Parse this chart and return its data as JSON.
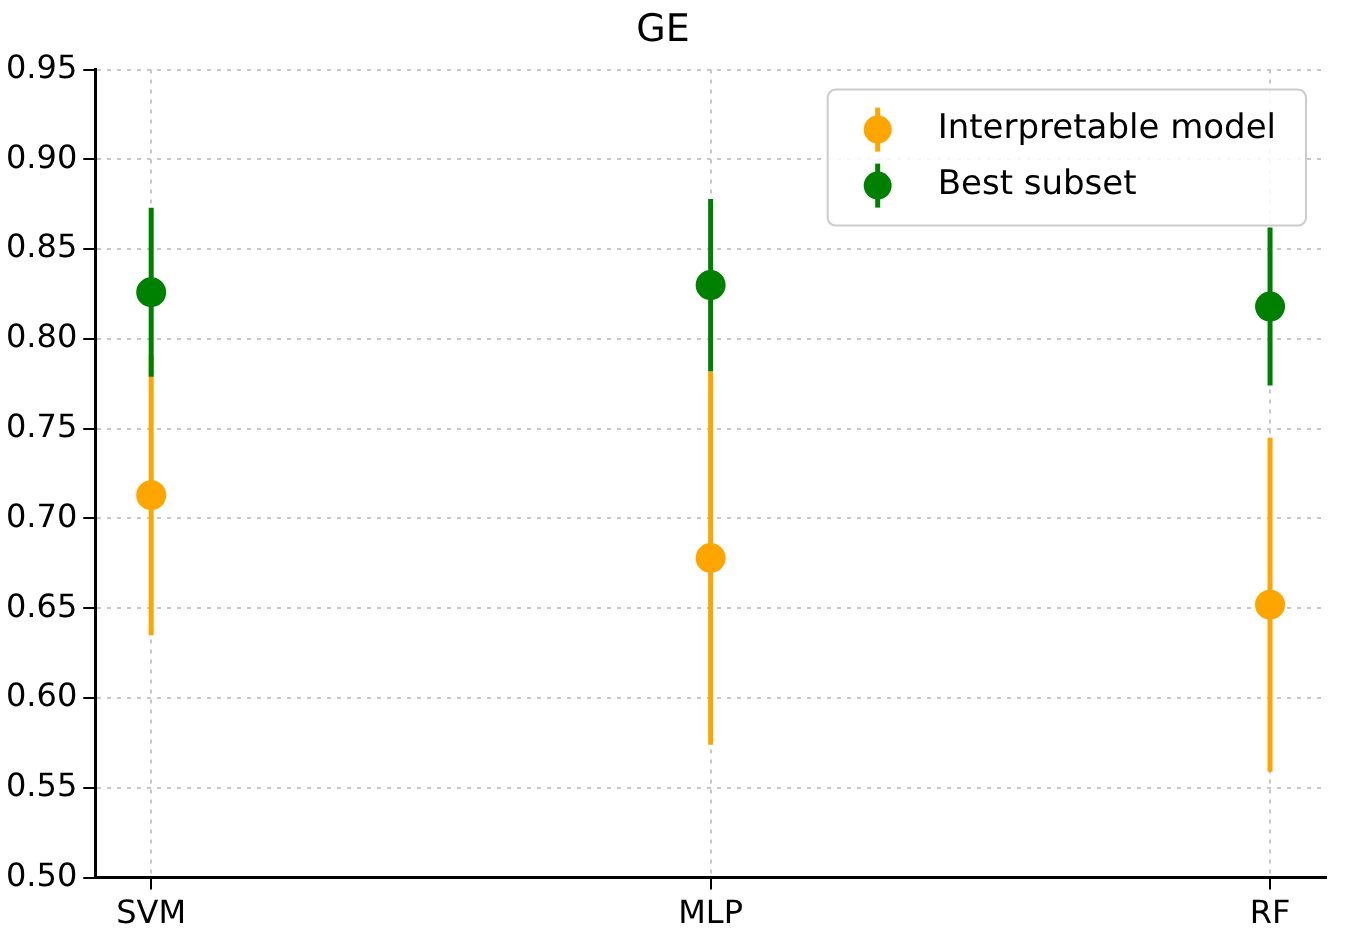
{
  "chart_data": {
    "type": "scatter",
    "title": "GE",
    "categories": [
      "SVM",
      "MLP",
      "RF"
    ],
    "series": [
      {
        "name": "Interpretable model",
        "color": "#ffa500",
        "values": [
          0.713,
          0.678,
          0.652
        ],
        "errors": [
          0.078,
          0.104,
          0.093
        ]
      },
      {
        "name": "Best subset",
        "color": "#008000",
        "values": [
          0.826,
          0.83,
          0.818
        ],
        "errors": [
          0.047,
          0.048,
          0.044
        ]
      }
    ],
    "ylim": [
      0.5,
      0.95
    ],
    "yticks": [
      {
        "value": 0.5,
        "label": "0.50"
      },
      0.55,
      {
        "value": 0.6,
        "label": "0.60"
      },
      0.65,
      {
        "value": 0.7,
        "label": "0.70"
      },
      0.75,
      {
        "value": 0.8,
        "label": "0.80"
      },
      0.85,
      {
        "value": 0.9,
        "label": "0.90"
      },
      0.95
    ],
    "grid": true,
    "legend": "top right",
    "marker": "circle"
  }
}
